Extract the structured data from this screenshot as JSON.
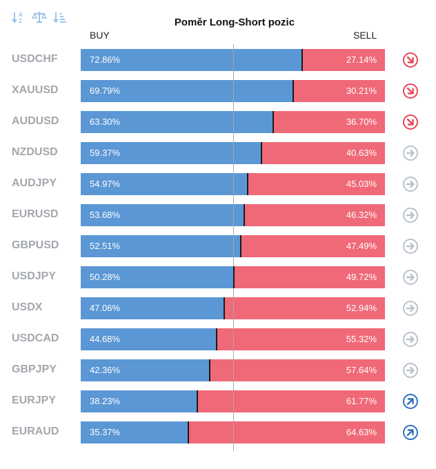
{
  "toolbar": {
    "icons": [
      "sort-az-icon",
      "balance-scale-icon",
      "sort-list-icon"
    ]
  },
  "header": {
    "title": "Poměr Long-Short pozic",
    "buy_label": "BUY",
    "sell_label": "SELL"
  },
  "colors": {
    "buy": "#5b97d5",
    "sell": "#f06978",
    "signal_down": "#e8465a",
    "signal_neutral": "#b9c2cd",
    "signal_up": "#2f6fc0"
  },
  "chart_data": {
    "type": "bar",
    "stacked": true,
    "orientation": "horizontal",
    "title": "Poměr Long-Short pozic",
    "categories": [
      "USDCHF",
      "XAUUSD",
      "AUDUSD",
      "NZDUSD",
      "AUDJPY",
      "EURUSD",
      "GBPUSD",
      "USDJPY",
      "USDX",
      "USDCAD",
      "GBPJPY",
      "EURJPY",
      "EURAUD"
    ],
    "series": [
      {
        "name": "BUY",
        "values": [
          72.86,
          69.79,
          63.3,
          59.37,
          54.97,
          53.68,
          52.51,
          50.28,
          47.06,
          44.68,
          42.36,
          38.23,
          35.37
        ]
      },
      {
        "name": "SELL",
        "values": [
          27.14,
          30.21,
          36.7,
          40.63,
          45.03,
          46.32,
          47.49,
          49.72,
          52.94,
          55.32,
          57.64,
          61.77,
          64.63
        ]
      }
    ],
    "labels_buy": [
      "72.86%",
      "69.79%",
      "63.30%",
      "59.37%",
      "54.97%",
      "53.68%",
      "52.51%",
      "50.28%",
      "47.06%",
      "44.68%",
      "42.36%",
      "38.23%",
      "35.37%"
    ],
    "labels_sell": [
      "27.14%",
      "30.21%",
      "36.70%",
      "40.63%",
      "45.03%",
      "46.32%",
      "47.49%",
      "49.72%",
      "52.94%",
      "55.32%",
      "57.64%",
      "61.77%",
      "64.63%"
    ],
    "signals": [
      "down",
      "down",
      "down",
      "neutral",
      "neutral",
      "neutral",
      "neutral",
      "neutral",
      "neutral",
      "neutral",
      "neutral",
      "up",
      "up"
    ],
    "xlim": [
      0,
      100
    ]
  }
}
